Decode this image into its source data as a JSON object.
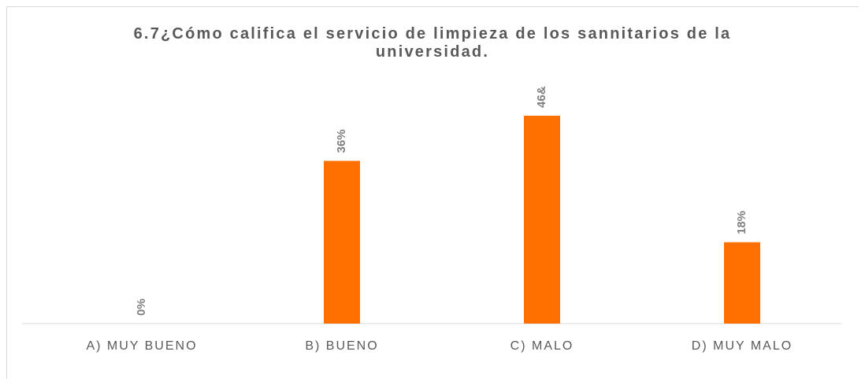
{
  "chart_data": {
    "type": "bar",
    "title": "6.7¿Cómo califica el servicio de limpieza de los sannitarios de la universidad.",
    "categories": [
      "A) MUY BUENO",
      "B) BUENO",
      "C) MALO",
      "D) MUY MALO"
    ],
    "values": [
      0,
      36,
      46,
      18
    ],
    "value_labels": [
      "0%",
      "36%",
      "46&",
      "18%"
    ],
    "color": "#ff7000",
    "ylim": [
      0,
      50
    ]
  }
}
